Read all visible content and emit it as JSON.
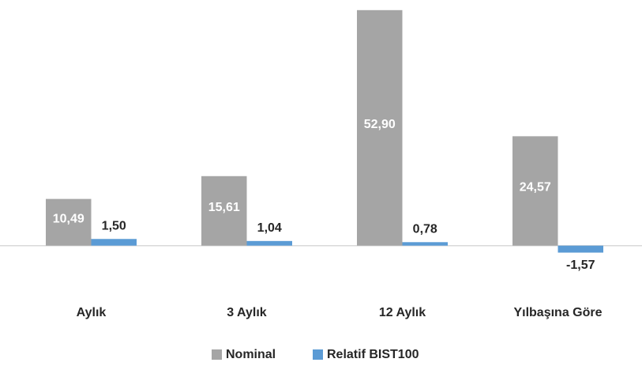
{
  "chart_data": {
    "type": "bar",
    "categories": [
      "Aylık",
      "3 Aylık",
      "12 Aylık",
      "Yılbaşına Göre"
    ],
    "series": [
      {
        "name": "Nominal",
        "color": "#a5a5a5",
        "values": [
          10.49,
          15.61,
          52.9,
          24.57
        ],
        "value_labels": [
          "10,49",
          "15,61",
          "52,90",
          "24,57"
        ]
      },
      {
        "name": "Relatif BIST100",
        "color": "#5b9bd5",
        "values": [
          1.5,
          1.04,
          0.78,
          -1.57
        ],
        "value_labels": [
          "1,50",
          "1,04",
          "0,78",
          "-1,57"
        ]
      }
    ],
    "ylim": [
      -10,
      55
    ],
    "legend": "bottom"
  }
}
